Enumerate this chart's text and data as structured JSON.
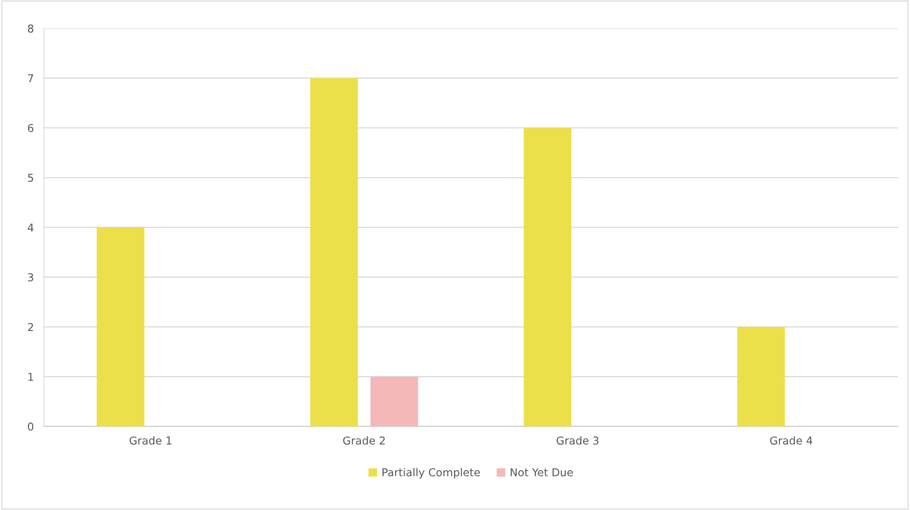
{
  "chart_data": {
    "type": "bar",
    "categories": [
      "Grade 1",
      "Grade 2",
      "Grade 3",
      "Grade 4"
    ],
    "series": [
      {
        "name": "Partially Complete",
        "color": "#ebe04a",
        "values": [
          4,
          7,
          6,
          2
        ]
      },
      {
        "name": "Not Yet Due",
        "color": "#f4b8b8",
        "values": [
          0,
          1,
          0,
          0
        ]
      }
    ],
    "ylim": [
      0,
      8
    ],
    "yticks": [
      0,
      1,
      2,
      3,
      4,
      5,
      6,
      7,
      8
    ],
    "grid": "y",
    "legend": "bottom"
  }
}
